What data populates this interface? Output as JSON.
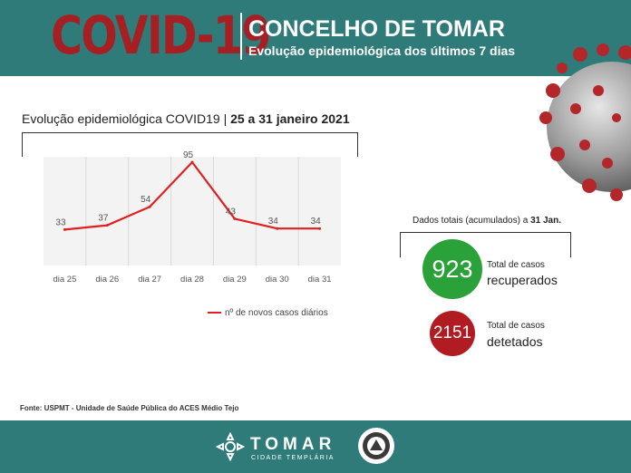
{
  "header": {
    "title": "COVID-19",
    "subtitle_main": "CONCELHO DE TOMAR",
    "subtitle_sub": "Evolução epidemiológica dos últimos 7 dias"
  },
  "chart": {
    "heading_prefix": "Evolução epidemiológica COVID19 | ",
    "heading_bold": "25 a 31 janeiro 2021"
  },
  "chart_data": {
    "type": "line",
    "categories": [
      "dia 25",
      "dia 26",
      "dia 27",
      "dia 28",
      "dia 29",
      "dia 30",
      "dia 31"
    ],
    "series": [
      {
        "name": "nº de novos casos diários",
        "values": [
          33,
          37,
          54,
          95,
          43,
          34,
          34
        ]
      }
    ],
    "title": "",
    "xlabel": "",
    "ylabel": "",
    "ylim": [
      0,
      100
    ],
    "grid": true,
    "legend_position": "bottom-right",
    "line_color": "#e02020"
  },
  "totals": {
    "heading_prefix": "Dados totais (acumulados) a ",
    "heading_bold": "31 Jan.",
    "recovered_value": "923",
    "recovered_label_small": "Total de casos",
    "recovered_label_big": "recuperados",
    "detected_value": "2151",
    "detected_label_small": "Total de casos",
    "detected_label_big": "detetados"
  },
  "source": "Fonte: USPMT - Unidade de Saúde Pública do ACES Médio Tejo",
  "footer": {
    "logo_word": "TOMAR",
    "logo_sub": "CIDADE TEMPLÁRIA",
    "emblem_icon": "civil-protection-emblem-icon"
  },
  "colors": {
    "teal": "#2e7b7a",
    "covid_red": "#a61f22",
    "green": "#2ba13a",
    "dark_red": "#b01c22"
  }
}
